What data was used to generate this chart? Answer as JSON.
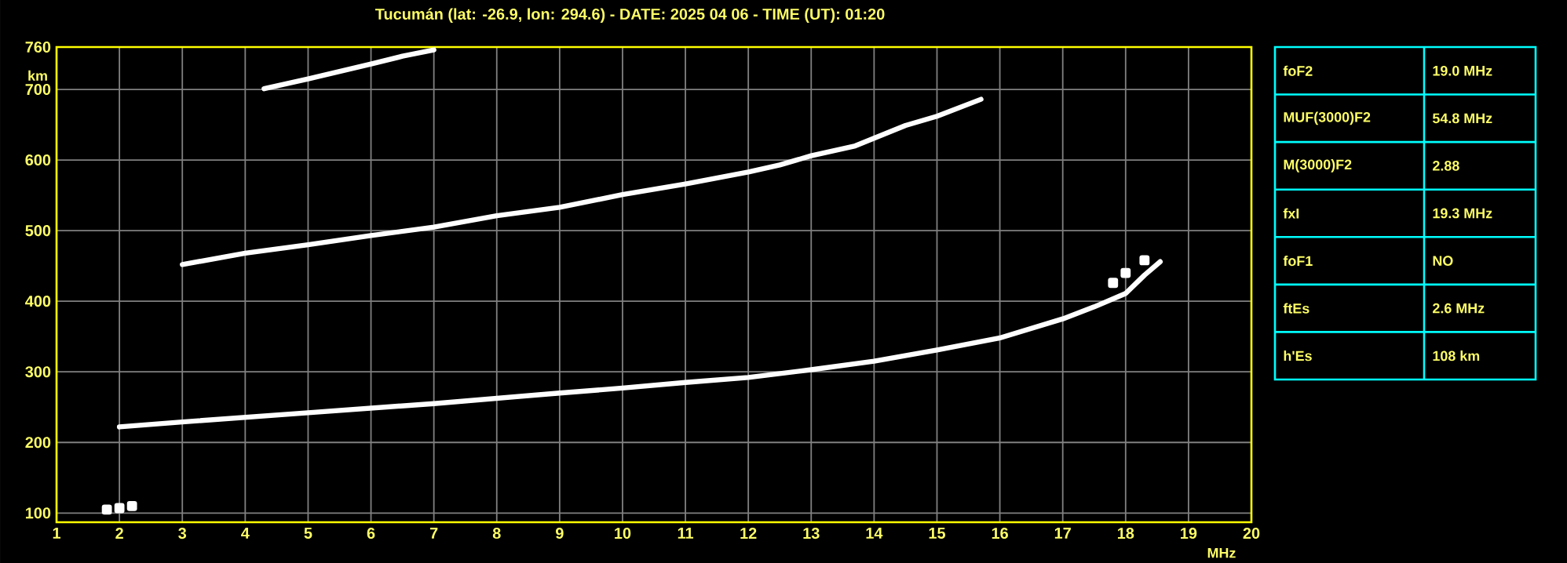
{
  "chart_data": [
    {
      "type": "line",
      "title": "Tucumán (lat: -26.9, lon: 294.6) - DATE: 2025 04 06 - TIME (UT): 01:20",
      "xlabel": "MHz",
      "ylabel": "km",
      "xlim": [
        1,
        20
      ],
      "ylim": [
        87,
        760
      ],
      "xticks": [
        1,
        2,
        3,
        4,
        5,
        6,
        7,
        8,
        9,
        10,
        11,
        12,
        13,
        14,
        15,
        16,
        17,
        18,
        19,
        20
      ],
      "yticks": [
        100,
        200,
        300,
        400,
        500,
        600,
        700,
        760
      ],
      "grid": true,
      "marker": "none",
      "line_style": "solid",
      "series": [
        {
          "type": "scatter",
          "marker": "square",
          "color": "#ffffff",
          "x": [
            1.8,
            2.0,
            2.2
          ],
          "values": [
            105,
            107,
            110
          ]
        },
        {
          "color": "#ffffff",
          "x": [
            2,
            3,
            5,
            7,
            9,
            10,
            11,
            12,
            13,
            14,
            15,
            16,
            17,
            17.5,
            18,
            18.3,
            18.55
          ],
          "values": [
            222,
            229,
            242,
            255,
            270,
            277,
            285,
            292,
            303,
            315,
            331,
            348,
            375,
            392,
            411,
            437,
            456
          ]
        },
        {
          "type": "scatter",
          "marker": "square",
          "color": "#ffffff",
          "x": [
            17.8,
            18.0,
            18.3
          ],
          "values": [
            426,
            440,
            458
          ]
        },
        {
          "color": "#ffffff",
          "x": [
            3,
            4,
            5,
            6,
            7,
            8,
            9,
            10,
            11,
            12,
            12.5,
            13,
            13.7,
            14.5,
            15,
            15.7
          ],
          "values": [
            452,
            468,
            480,
            493,
            505,
            521,
            533,
            551,
            566,
            583,
            593,
            606,
            620,
            649,
            662,
            686
          ]
        },
        {
          "color": "#ffffff",
          "x": [
            4.3,
            5,
            6,
            6.5,
            7
          ],
          "values": [
            701,
            715,
            736,
            747,
            756
          ]
        }
      ]
    },
    {
      "type": "other",
      "categories": [
        "foF2",
        "MUF(3000)F2",
        "M(3000)F2",
        "fxI",
        "foF1",
        "ftEs",
        "h'Es"
      ],
      "value_labels": [
        "19.0 MHz",
        "54.8 MHz",
        "2.88",
        "19.3 MHz",
        "NO",
        "2.6 MHz",
        "108 km"
      ]
    }
  ]
}
